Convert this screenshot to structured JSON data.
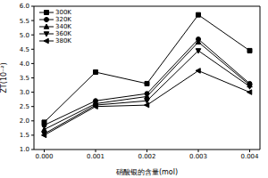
{
  "chart_data": {
    "type": "line",
    "x_label": "硝酸银的含量(mol)",
    "y_label": "ZT(10⁻²)",
    "x": [
      0,
      0.001,
      0.002,
      0.003,
      0.004
    ],
    "xlim": [
      -0.0002,
      0.0042
    ],
    "xticks": [
      {
        "value": 0,
        "label": "0.000"
      },
      {
        "value": 0.001,
        "label": "0.001"
      },
      {
        "value": 0.002,
        "label": "0.002"
      },
      {
        "value": 0.003,
        "label": "0.003"
      },
      {
        "value": 0.004,
        "label": "0.004"
      }
    ],
    "ylim": [
      1.0,
      6.0
    ],
    "yticks": [
      {
        "value": 1.0,
        "label": "1.0"
      },
      {
        "value": 1.5,
        "label": "1.5"
      },
      {
        "value": 2.0,
        "label": "2.0"
      },
      {
        "value": 2.5,
        "label": "2.5"
      },
      {
        "value": 3.0,
        "label": "3.0"
      },
      {
        "value": 3.5,
        "label": "3.5"
      },
      {
        "value": 4.0,
        "label": "4.0"
      },
      {
        "value": 4.5,
        "label": "4.5"
      },
      {
        "value": 5.0,
        "label": "5.0"
      },
      {
        "value": 5.5,
        "label": "5.5"
      },
      {
        "value": 6.0,
        "label": "6.0"
      }
    ],
    "legend": "top-left",
    "grid": false,
    "series": [
      {
        "name": "300K",
        "color": "#000000",
        "marker": "square",
        "values": [
          1.95,
          3.7,
          3.3,
          5.7,
          4.45
        ]
      },
      {
        "name": "320K",
        "color": "#000000",
        "marker": "circle",
        "values": [
          1.85,
          2.7,
          2.95,
          4.85,
          3.3
        ]
      },
      {
        "name": "340K",
        "color": "#000000",
        "marker": "triangle",
        "values": [
          1.7,
          2.6,
          2.85,
          4.75,
          3.25
        ]
      },
      {
        "name": "360K",
        "color": "#000000",
        "marker": "triangle-down",
        "values": [
          1.55,
          2.55,
          2.7,
          4.45,
          3.2
        ]
      },
      {
        "name": "380K",
        "color": "#000000",
        "marker": "triangle-left",
        "values": [
          1.5,
          2.5,
          2.55,
          3.75,
          3.0
        ]
      }
    ]
  }
}
